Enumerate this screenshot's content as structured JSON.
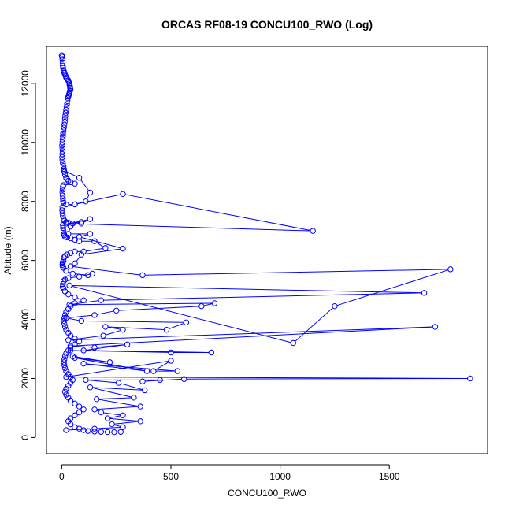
{
  "chart_data": {
    "type": "line",
    "title": "ORCAS RF08-19 CONCU100_RWO (Log)",
    "xlabel": "CONCU100_RWO",
    "ylabel": "Altitude (m)",
    "xlim": [
      -70,
      1950
    ],
    "ylim": [
      -550,
      13250
    ],
    "xticks": [
      0,
      500,
      1000,
      1500
    ],
    "yticks": [
      0,
      2000,
      4000,
      6000,
      8000,
      10000,
      12000
    ],
    "marker": "open-circle",
    "color": "#0000ff",
    "grid": false,
    "series": [
      {
        "points": [
          [
            0,
            12950
          ],
          [
            2,
            12900
          ],
          [
            3,
            12820
          ],
          [
            4,
            12700
          ],
          [
            5,
            12600
          ],
          [
            6,
            12520
          ],
          [
            8,
            12450
          ],
          [
            10,
            12400
          ],
          [
            12,
            12350
          ],
          [
            15,
            12300
          ],
          [
            18,
            12250
          ],
          [
            20,
            12200
          ],
          [
            25,
            12150
          ],
          [
            30,
            12100
          ],
          [
            32,
            12050
          ],
          [
            35,
            12000
          ],
          [
            36,
            11950
          ],
          [
            38,
            11900
          ],
          [
            38,
            11850
          ],
          [
            40,
            11800
          ],
          [
            38,
            11750
          ],
          [
            36,
            11700
          ],
          [
            34,
            11650
          ],
          [
            32,
            11600
          ],
          [
            30,
            11550
          ],
          [
            28,
            11500
          ],
          [
            26,
            11400
          ],
          [
            24,
            11300
          ],
          [
            22,
            11200
          ],
          [
            20,
            11100
          ],
          [
            18,
            11000
          ],
          [
            16,
            10900
          ],
          [
            15,
            10800
          ],
          [
            14,
            10700
          ],
          [
            12,
            10600
          ],
          [
            10,
            10500
          ],
          [
            8,
            10400
          ],
          [
            6,
            10300
          ],
          [
            5,
            10200
          ],
          [
            4,
            10100
          ],
          [
            3,
            10000
          ],
          [
            2,
            9900
          ],
          [
            3,
            9800
          ],
          [
            4,
            9700
          ],
          [
            3,
            9600
          ],
          [
            2,
            9500
          ],
          [
            3,
            9400
          ],
          [
            5,
            9300
          ],
          [
            8,
            9200
          ],
          [
            10,
            9100
          ],
          [
            12,
            9000
          ],
          [
            15,
            8900
          ],
          [
            20,
            8800
          ],
          [
            25,
            8750
          ],
          [
            30,
            8700
          ],
          [
            40,
            8650
          ],
          [
            60,
            8600
          ],
          [
            8,
            8550
          ],
          [
            5,
            8500
          ],
          [
            4,
            8400
          ],
          [
            3,
            8300
          ],
          [
            4,
            8200
          ],
          [
            5,
            8100
          ],
          [
            6,
            8000
          ],
          [
            8,
            7950
          ],
          [
            20,
            7900
          ],
          [
            60,
            7900
          ],
          [
            3,
            7800
          ],
          [
            2,
            7700
          ],
          [
            3,
            7600
          ],
          [
            5,
            7500
          ],
          [
            8,
            7400
          ],
          [
            12,
            7350
          ],
          [
            20,
            7300
          ],
          [
            30,
            7280
          ],
          [
            50,
            7250
          ],
          [
            90,
            7250
          ],
          [
            130,
            7400
          ],
          [
            5,
            7200
          ],
          [
            6,
            7100
          ],
          [
            8,
            7000
          ],
          [
            10,
            6900
          ],
          [
            12,
            6850
          ],
          [
            15,
            6800
          ],
          [
            25,
            6780
          ],
          [
            40,
            6750
          ],
          [
            60,
            6700
          ],
          [
            80,
            6650
          ],
          [
            150,
            6650
          ],
          [
            200,
            6420
          ],
          [
            100,
            6300
          ],
          [
            60,
            6300
          ],
          [
            40,
            6250
          ],
          [
            25,
            6200
          ],
          [
            15,
            6150
          ],
          [
            10,
            6100
          ],
          [
            8,
            6000
          ],
          [
            5,
            5950
          ],
          [
            4,
            5900
          ],
          [
            3,
            5850
          ],
          [
            4,
            5800
          ],
          [
            8,
            5750
          ],
          [
            20,
            5650
          ],
          [
            50,
            5550
          ],
          [
            120,
            5500
          ],
          [
            140,
            5550
          ],
          [
            80,
            5450
          ],
          [
            30,
            5400
          ],
          [
            15,
            5350
          ],
          [
            8,
            5300
          ],
          [
            5,
            5200
          ],
          [
            4,
            5100
          ],
          [
            8,
            5050
          ],
          [
            15,
            4950
          ],
          [
            30,
            4850
          ],
          [
            60,
            4750
          ],
          [
            100,
            4650
          ],
          [
            60,
            4550
          ],
          [
            40,
            4450
          ],
          [
            30,
            4350
          ],
          [
            20,
            4250
          ],
          [
            15,
            4150
          ],
          [
            12,
            4050
          ],
          [
            10,
            3950
          ],
          [
            12,
            3850
          ],
          [
            15,
            3750
          ],
          [
            20,
            3650
          ],
          [
            30,
            3550
          ],
          [
            40,
            3450
          ],
          [
            60,
            3350
          ],
          [
            80,
            3250
          ],
          [
            60,
            3150
          ],
          [
            40,
            3050
          ],
          [
            30,
            2950
          ],
          [
            20,
            2850
          ],
          [
            15,
            2750
          ],
          [
            12,
            2650
          ],
          [
            10,
            2550
          ],
          [
            12,
            2450
          ],
          [
            15,
            2350
          ],
          [
            20,
            2250
          ],
          [
            30,
            2150
          ],
          [
            40,
            2050
          ],
          [
            50,
            1950
          ],
          [
            40,
            1850
          ],
          [
            30,
            1750
          ],
          [
            20,
            1650
          ],
          [
            15,
            1550
          ],
          [
            20,
            1450
          ],
          [
            30,
            1350
          ],
          [
            40,
            1250
          ],
          [
            60,
            1150
          ],
          [
            80,
            1050
          ],
          [
            100,
            950
          ],
          [
            80,
            850
          ],
          [
            60,
            750
          ],
          [
            40,
            650
          ],
          [
            30,
            550
          ],
          [
            40,
            450
          ],
          [
            60,
            350
          ],
          [
            80,
            300
          ],
          [
            100,
            250
          ],
          [
            120,
            220
          ],
          [
            150,
            200
          ],
          [
            180,
            190
          ],
          [
            210,
            185
          ],
          [
            240,
            180
          ],
          [
            270,
            190
          ]
        ]
      },
      {
        "points": [
          [
            10,
            9050
          ],
          [
            80,
            8800
          ],
          [
            130,
            8300
          ],
          [
            110,
            8000
          ],
          [
            60,
            7900
          ],
          [
            280,
            8250
          ],
          [
            1150,
            7000
          ],
          [
            20,
            7250
          ],
          [
            90,
            7300
          ],
          [
            40,
            7150
          ],
          [
            30,
            6900
          ],
          [
            130,
            6900
          ],
          [
            80,
            6800
          ],
          [
            280,
            6400
          ],
          [
            90,
            6200
          ],
          [
            60,
            5900
          ],
          [
            40,
            5800
          ],
          [
            370,
            5500
          ],
          [
            1780,
            5700
          ],
          [
            1250,
            4450
          ],
          [
            1060,
            3200
          ],
          [
            35,
            5150
          ],
          [
            1660,
            4900
          ],
          [
            180,
            4650
          ],
          [
            35,
            4500
          ],
          [
            700,
            4550
          ],
          [
            640,
            4450
          ],
          [
            250,
            4300
          ],
          [
            150,
            4150
          ],
          [
            20,
            4050
          ],
          [
            90,
            3950
          ],
          [
            570,
            3900
          ],
          [
            480,
            3650
          ],
          [
            200,
            3750
          ],
          [
            280,
            3650
          ],
          [
            190,
            3450
          ],
          [
            30,
            3300
          ],
          [
            1710,
            3750
          ],
          [
            40,
            3100
          ],
          [
            150,
            3050
          ],
          [
            300,
            3150
          ],
          [
            100,
            2950
          ],
          [
            685,
            2880
          ],
          [
            500,
            2880
          ],
          [
            40,
            2950
          ],
          [
            50,
            2750
          ],
          [
            220,
            2550
          ],
          [
            60,
            2700
          ],
          [
            390,
            2250
          ],
          [
            100,
            2500
          ],
          [
            530,
            2250
          ],
          [
            420,
            2250
          ],
          [
            500,
            2600
          ],
          [
            20,
            2050
          ],
          [
            1870,
            2000
          ],
          [
            560,
            1980
          ],
          [
            370,
            1900
          ],
          [
            450,
            1950
          ],
          [
            110,
            1950
          ],
          [
            260,
            1850
          ],
          [
            380,
            1600
          ],
          [
            130,
            1700
          ],
          [
            330,
            1350
          ],
          [
            160,
            1300
          ],
          [
            360,
            1050
          ],
          [
            150,
            950
          ],
          [
            180,
            850
          ],
          [
            280,
            750
          ],
          [
            210,
            650
          ],
          [
            360,
            550
          ],
          [
            230,
            450
          ],
          [
            280,
            350
          ],
          [
            150,
            300
          ],
          [
            20,
            250
          ]
        ]
      }
    ]
  }
}
